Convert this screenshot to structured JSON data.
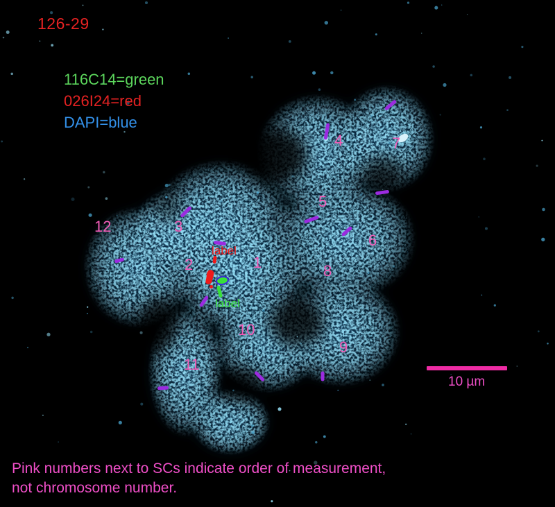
{
  "figure": {
    "id_label": "126-29",
    "legend": [
      {
        "name": "probe-116C14",
        "text": "116C14=green",
        "color": "#5cd65c"
      },
      {
        "name": "probe-026I24",
        "text": "026I24=red",
        "color": "#e62222"
      },
      {
        "name": "stain-DAPI",
        "text": "DAPI=blue",
        "color": "#3390e8"
      }
    ],
    "measurement_numbers": [
      "1",
      "2",
      "3",
      "4",
      "5",
      "6",
      "7",
      "8",
      "9",
      "10",
      "11",
      "12"
    ],
    "probe_markers": {
      "red_label": "label",
      "green_label": "label"
    },
    "scale_bar": {
      "label": "10 µm"
    },
    "caption": {
      "line1": "Pink numbers next to SCs indicate order of measurement,",
      "line2": "not chromosome number."
    },
    "colors": {
      "id_red": "#e62222",
      "probe_red": "#ee1a1a",
      "probe_green": "#38e038",
      "pink_numbers": "#f35cb8",
      "purple_tick": "#9b2be0",
      "scale_bar_pink": "#ef2ba4",
      "caption_pink": "#f04fc8",
      "dapi_cyan": "#4db8e8"
    }
  }
}
